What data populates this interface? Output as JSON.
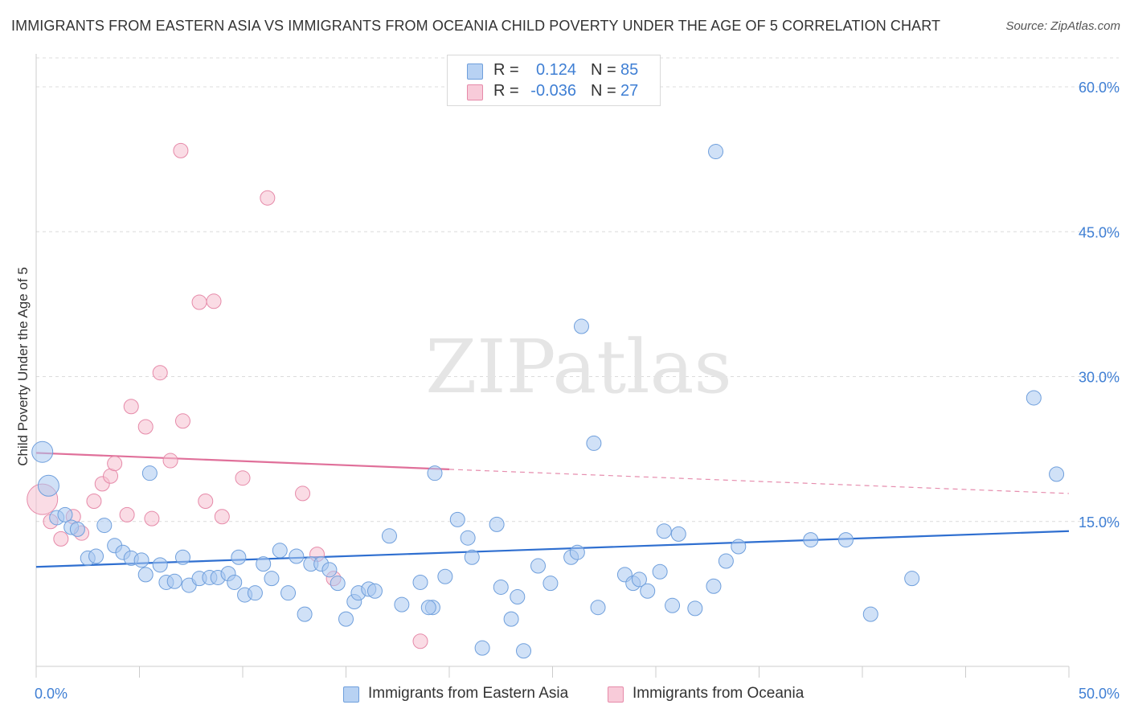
{
  "header": {
    "title": "IMMIGRANTS FROM EASTERN ASIA VS IMMIGRANTS FROM OCEANIA CHILD POVERTY UNDER THE AGE OF 5 CORRELATION CHART",
    "source": "Source: ZipAtlas.com"
  },
  "watermark": "ZIPatlas",
  "legend": {
    "rows": [
      {
        "r_label": "R =",
        "r_value": "0.124",
        "n_label": "N =",
        "n_value": "85"
      },
      {
        "r_label": "R =",
        "r_value": "-0.036",
        "n_label": "N =",
        "n_value": "27"
      }
    ]
  },
  "bottom_legend": {
    "items": [
      {
        "label": "Immigrants from Eastern Asia"
      },
      {
        "label": "Immigrants from Oceania"
      }
    ]
  },
  "colors": {
    "blue_fill": "#a9c8f0",
    "blue_stroke": "#6f9fdc",
    "blue_line": "#2f6fd0",
    "pink_fill": "#f5bfd0",
    "pink_stroke": "#e68aa9",
    "pink_line": "#e0709a",
    "tick_text": "#3f7fd4",
    "grid": "#dcdcdc"
  },
  "chart_data": {
    "type": "scatter",
    "title": "IMMIGRANTS FROM EASTERN ASIA VS IMMIGRANTS FROM OCEANIA CHILD POVERTY UNDER THE AGE OF 5 CORRELATION CHART",
    "xlabel": "",
    "ylabel": "Child Poverty Under the Age of 5",
    "xlim": [
      0,
      50
    ],
    "ylim": [
      0,
      63
    ],
    "x_tick_labels": [
      "0.0%",
      "50.0%"
    ],
    "y_ticks": [
      15,
      30,
      45,
      60
    ],
    "y_tick_labels": [
      "15.0%",
      "30.0%",
      "45.0%",
      "60.0%"
    ],
    "grid": "horizontal dashed",
    "legend_position": "top-center",
    "series": [
      {
        "name": "Immigrants from Eastern Asia",
        "color": "#a9c8f0",
        "r": 0.124,
        "n": 85,
        "trend": {
          "x": [
            0,
            50
          ],
          "y": [
            10.3,
            14.0
          ]
        },
        "points": [
          [
            0.3,
            22.2
          ],
          [
            0.6,
            18.7
          ],
          [
            1.0,
            15.4
          ],
          [
            1.4,
            15.7
          ],
          [
            1.7,
            14.4
          ],
          [
            2.0,
            14.2
          ],
          [
            2.5,
            11.2
          ],
          [
            2.9,
            11.4
          ],
          [
            3.3,
            14.6
          ],
          [
            3.8,
            12.5
          ],
          [
            4.2,
            11.8
          ],
          [
            4.6,
            11.2
          ],
          [
            5.1,
            11.0
          ],
          [
            5.3,
            9.5
          ],
          [
            5.5,
            20.0
          ],
          [
            6.0,
            10.5
          ],
          [
            6.3,
            8.7
          ],
          [
            6.7,
            8.8
          ],
          [
            7.1,
            11.3
          ],
          [
            7.4,
            8.4
          ],
          [
            7.9,
            9.1
          ],
          [
            8.4,
            9.2
          ],
          [
            8.8,
            9.2
          ],
          [
            9.3,
            9.6
          ],
          [
            9.6,
            8.7
          ],
          [
            9.8,
            11.3
          ],
          [
            10.1,
            7.4
          ],
          [
            10.6,
            7.6
          ],
          [
            11.0,
            10.6
          ],
          [
            11.4,
            9.1
          ],
          [
            11.8,
            12.0
          ],
          [
            12.2,
            7.6
          ],
          [
            12.6,
            11.4
          ],
          [
            13.0,
            5.4
          ],
          [
            13.3,
            10.6
          ],
          [
            13.8,
            10.6
          ],
          [
            14.2,
            10.0
          ],
          [
            14.6,
            8.6
          ],
          [
            15.0,
            4.9
          ],
          [
            15.4,
            6.7
          ],
          [
            15.6,
            7.6
          ],
          [
            16.1,
            8.0
          ],
          [
            16.4,
            7.8
          ],
          [
            17.1,
            13.5
          ],
          [
            17.7,
            6.4
          ],
          [
            18.6,
            8.7
          ],
          [
            19.2,
            6.1
          ],
          [
            19.0,
            6.1
          ],
          [
            19.3,
            20.0
          ],
          [
            19.8,
            9.3
          ],
          [
            20.4,
            15.2
          ],
          [
            20.9,
            13.3
          ],
          [
            21.1,
            11.3
          ],
          [
            21.6,
            1.9
          ],
          [
            22.3,
            14.7
          ],
          [
            22.5,
            8.2
          ],
          [
            23.0,
            4.9
          ],
          [
            23.3,
            7.2
          ],
          [
            23.6,
            1.6
          ],
          [
            24.3,
            10.4
          ],
          [
            24.9,
            8.6
          ],
          [
            25.9,
            11.3
          ],
          [
            26.2,
            11.8
          ],
          [
            26.4,
            35.2
          ],
          [
            27.0,
            23.1
          ],
          [
            27.2,
            6.1
          ],
          [
            28.5,
            9.5
          ],
          [
            28.9,
            8.6
          ],
          [
            29.2,
            9.0
          ],
          [
            29.6,
            7.8
          ],
          [
            30.2,
            9.8
          ],
          [
            30.4,
            14.0
          ],
          [
            30.8,
            6.3
          ],
          [
            31.1,
            13.7
          ],
          [
            31.9,
            6.0
          ],
          [
            32.8,
            8.3
          ],
          [
            32.9,
            53.3
          ],
          [
            33.4,
            10.9
          ],
          [
            34.0,
            12.4
          ],
          [
            37.5,
            13.1
          ],
          [
            39.2,
            13.1
          ],
          [
            40.4,
            5.4
          ],
          [
            42.4,
            9.1
          ],
          [
            48.3,
            27.8
          ],
          [
            49.4,
            19.9
          ]
        ]
      },
      {
        "name": "Immigrants from Oceania",
        "color": "#f5bfd0",
        "r": -0.036,
        "n": 27,
        "trend": {
          "x": [
            0,
            20
          ],
          "y": [
            22.1,
            20.4
          ]
        },
        "trend_extension": {
          "x": [
            20,
            50
          ],
          "y": [
            20.4,
            17.9
          ]
        },
        "points": [
          [
            0.3,
            17.3
          ],
          [
            0.7,
            15.0
          ],
          [
            1.2,
            13.2
          ],
          [
            1.8,
            15.5
          ],
          [
            2.2,
            13.8
          ],
          [
            2.8,
            17.1
          ],
          [
            3.2,
            18.9
          ],
          [
            3.6,
            19.7
          ],
          [
            3.8,
            21.0
          ],
          [
            4.4,
            15.7
          ],
          [
            4.6,
            26.9
          ],
          [
            5.3,
            24.8
          ],
          [
            5.6,
            15.3
          ],
          [
            6.0,
            30.4
          ],
          [
            6.5,
            21.3
          ],
          [
            7.0,
            53.4
          ],
          [
            7.1,
            25.4
          ],
          [
            7.9,
            37.7
          ],
          [
            8.2,
            17.1
          ],
          [
            8.6,
            37.8
          ],
          [
            9.0,
            15.5
          ],
          [
            10.0,
            19.5
          ],
          [
            11.2,
            48.5
          ],
          [
            12.9,
            17.9
          ],
          [
            13.6,
            11.6
          ],
          [
            14.4,
            9.1
          ],
          [
            18.6,
            2.6
          ]
        ]
      }
    ]
  }
}
